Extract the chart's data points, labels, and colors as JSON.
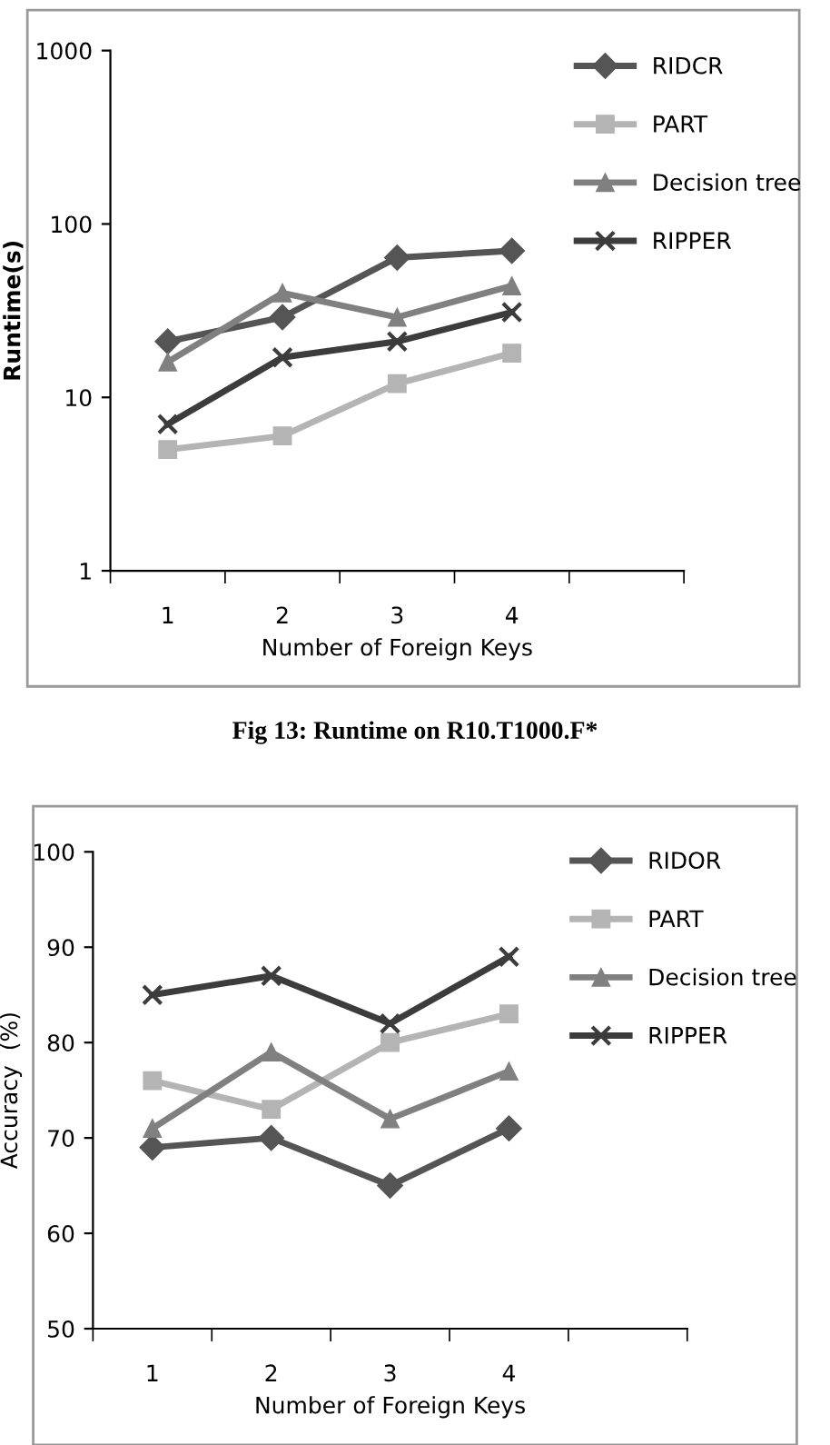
{
  "chart_data": [
    {
      "type": "line",
      "xlabel": "Number of Foreign Keys",
      "ylabel": "Runtime(s)",
      "categories": [
        "1",
        "2",
        "3",
        "4",
        null
      ],
      "log": true,
      "ylim": [
        1,
        1000
      ],
      "yticks": [
        1,
        10,
        100,
        1000
      ],
      "grid": false,
      "legend": "right",
      "annotations": [
        "Fig 13: Runtime on R10.T1000.F*"
      ],
      "series": [
        {
          "name": "RIDCR",
          "color": "#555555",
          "marker": "diamond",
          "values": [
            21,
            29,
            64,
            70,
            null
          ]
        },
        {
          "name": "PART",
          "color": "#b4b4b4",
          "marker": "square",
          "values": [
            5,
            6,
            12,
            18,
            null
          ]
        },
        {
          "name": "Decision tree",
          "color": "#808080",
          "marker": "triangle",
          "values": [
            16,
            40,
            29,
            44,
            null
          ]
        },
        {
          "name": "RIPPER",
          "color": "#3c3c3c",
          "marker": "cross",
          "values": [
            7,
            17,
            21,
            31,
            null
          ]
        }
      ]
    },
    {
      "type": "line",
      "xlabel": "Number of Foreign Keys",
      "ylabel": "Accuracy  (%)",
      "categories": [
        "1",
        "2",
        "3",
        "4",
        null
      ],
      "ylim": [
        50,
        100
      ],
      "yticks": [
        50,
        60,
        70,
        80,
        90,
        100
      ],
      "grid": false,
      "legend": "right",
      "series": [
        {
          "name": "RIDOR",
          "color": "#555555",
          "marker": "diamond",
          "values": [
            69,
            70,
            65,
            71,
            null
          ]
        },
        {
          "name": "PART",
          "color": "#b4b4b4",
          "marker": "square",
          "values": [
            76,
            73,
            80,
            83,
            null
          ]
        },
        {
          "name": "Decision tree",
          "color": "#808080",
          "marker": "triangle",
          "values": [
            71,
            79,
            72,
            77,
            null
          ]
        },
        {
          "name": "RIPPER",
          "color": "#3c3c3c",
          "marker": "cross",
          "values": [
            85,
            87,
            82,
            89,
            null
          ]
        }
      ]
    }
  ]
}
